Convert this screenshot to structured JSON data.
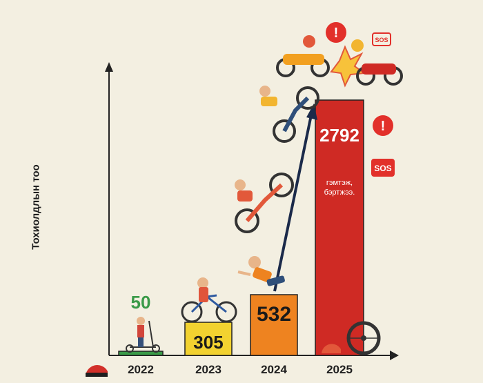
{
  "chart_data": {
    "type": "bar",
    "title": "",
    "xlabel": "",
    "ylabel": "Тохиолдлын тоо",
    "categories": [
      "2022",
      "2023",
      "2024",
      "2025"
    ],
    "values": [
      50,
      305,
      532,
      2792
    ],
    "bar_colors": [
      "#3a9a48",
      "#f2d230",
      "#ee8320",
      "#cf2a24"
    ],
    "value_label_colors": [
      "#3a9a48",
      "#1a1a1a",
      "#1a1a1a",
      "#ffffff"
    ],
    "annotation": "гэмтэж, бэртжээ.",
    "badges": [
      "!",
      "!",
      "SOS"
    ],
    "icons": [
      "kick-scooter-icon",
      "bicycle-rider-icon",
      "falling-rider-icon",
      "motorcycle-crash-icon",
      "motorcycle-wheelie-icon",
      "helmet-icon",
      "wheel-icon",
      "trend-arrow-icon"
    ],
    "grid": false,
    "legend": "none"
  }
}
